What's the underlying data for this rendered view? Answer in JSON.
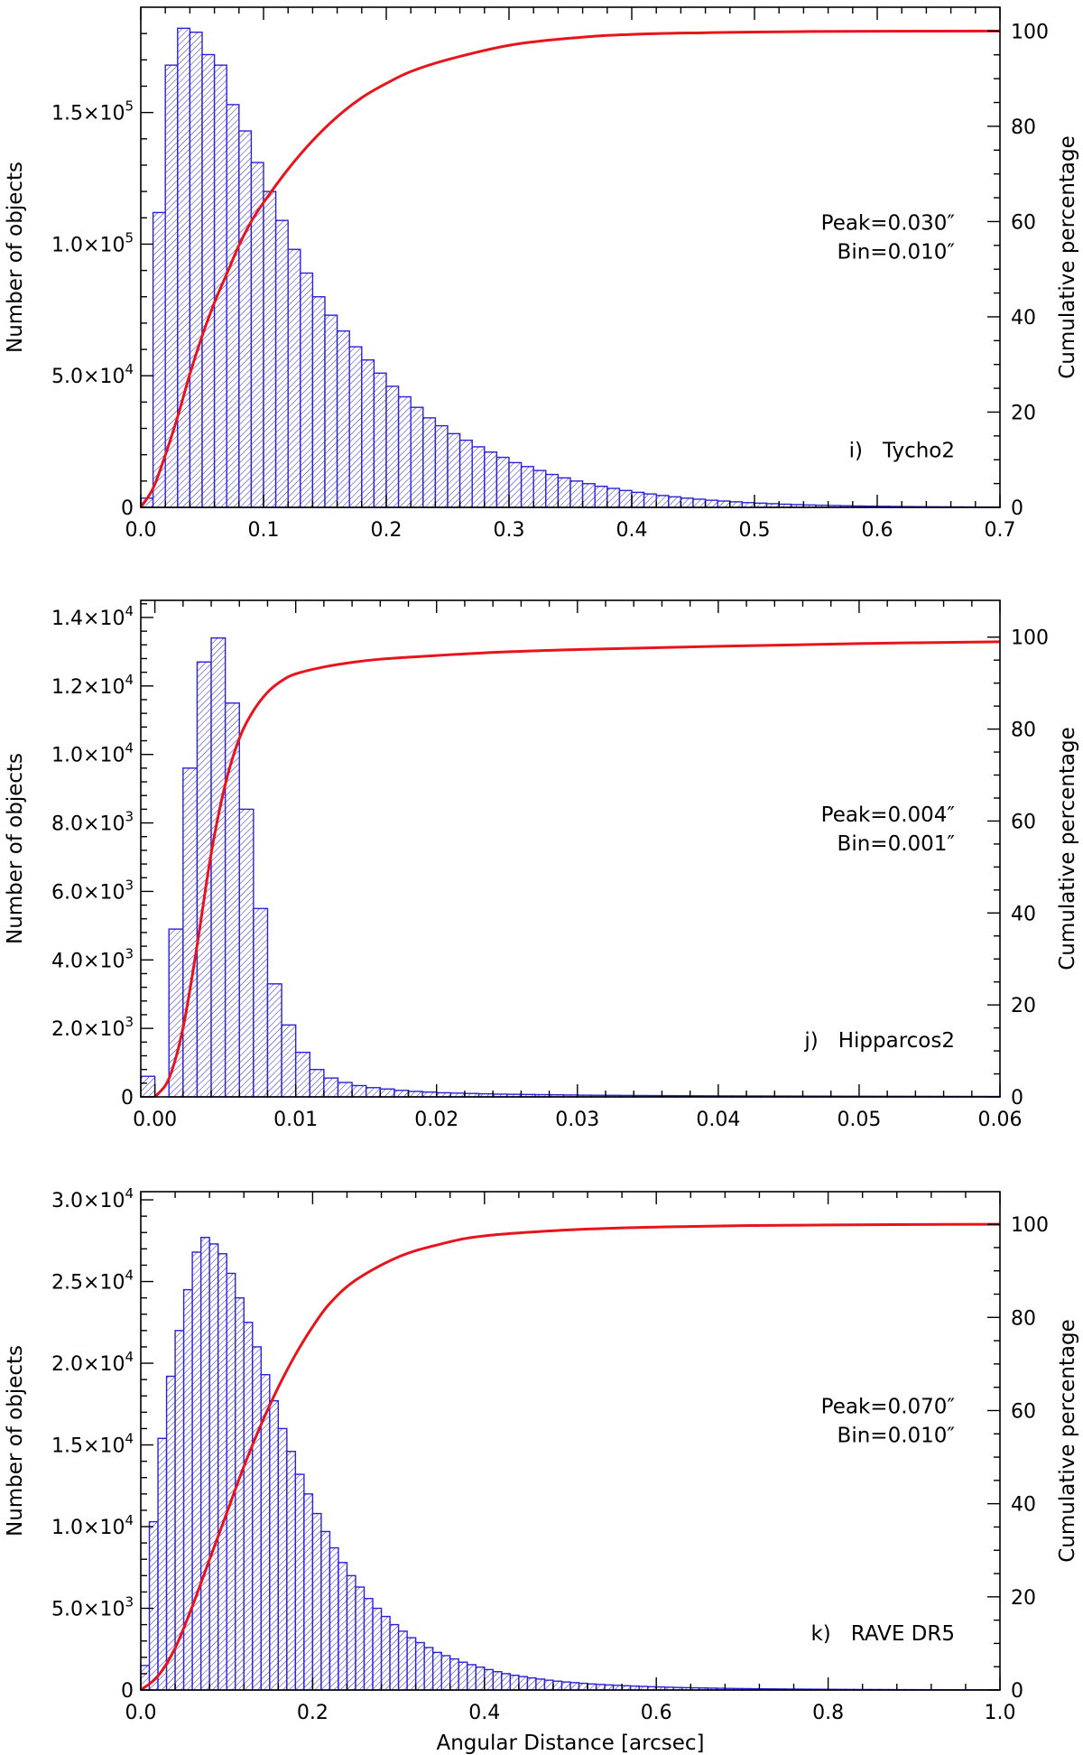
{
  "chart_data": [
    {
      "type": "bar",
      "panel_label": "i)",
      "catalog": "Tycho2",
      "peak_text": "Peak=0.030″",
      "bin_text": "Bin=0.010″",
      "ylabel": "Number of objects",
      "y2label": "Cumulative percentage",
      "xlabel": "",
      "xlim": [
        0,
        0.7
      ],
      "ylim": [
        0,
        190000
      ],
      "y2lim": [
        0,
        105
      ],
      "bin_width": 0.01,
      "x_ticks": [
        "0.0",
        "0.1",
        "0.2",
        "0.3",
        "0.4",
        "0.5",
        "0.6",
        "0.7"
      ],
      "x_tick_values": [
        0,
        0.1,
        0.2,
        0.3,
        0.4,
        0.5,
        0.6,
        0.7
      ],
      "y_ticks": [
        {
          "value": 0,
          "mant": "0",
          "exp": ""
        },
        {
          "value": 50000,
          "mant": "5.0×10",
          "exp": "4"
        },
        {
          "value": 100000,
          "mant": "1.0×10",
          "exp": "5"
        },
        {
          "value": 150000,
          "mant": "1.5×10",
          "exp": "5"
        }
      ],
      "y2_ticks": [
        0,
        20,
        40,
        60,
        80,
        100
      ],
      "counts": [
        3500,
        112000,
        168000,
        182000,
        180500,
        172000,
        168000,
        153000,
        143000,
        131000,
        120000,
        109000,
        98000,
        89000,
        80000,
        73000,
        67000,
        61000,
        56000,
        51000,
        46000,
        42000,
        38000,
        34000,
        31000,
        28000,
        25500,
        23000,
        21000,
        19000,
        17000,
        15500,
        14000,
        12500,
        11200,
        10000,
        9000,
        8000,
        7200,
        6400,
        5700,
        5100,
        4500,
        4000,
        3500,
        3100,
        2700,
        2400,
        2100,
        1800,
        1600,
        1400,
        1200,
        1050,
        900,
        800,
        700,
        600,
        520,
        450,
        400,
        350,
        300,
        260,
        230,
        200,
        170,
        150,
        130,
        110
      ],
      "cumulative": {
        "x": [
          0,
          0.01,
          0.02,
          0.03,
          0.04,
          0.05,
          0.06,
          0.07,
          0.08,
          0.09,
          0.1,
          0.12,
          0.14,
          0.16,
          0.18,
          0.2,
          0.22,
          0.25,
          0.3,
          0.35,
          0.4,
          0.5,
          0.6,
          0.7
        ],
        "y": [
          0,
          4,
          11,
          19,
          28,
          36,
          43,
          49,
          55,
          60,
          64,
          71,
          77,
          82,
          86,
          89,
          91.5,
          94,
          97,
          98.5,
          99.3,
          99.8,
          99.95,
          100
        ]
      }
    },
    {
      "type": "bar",
      "panel_label": "j)",
      "catalog": "Hipparcos2",
      "peak_text": "Peak=0.004″",
      "bin_text": "Bin=0.001″",
      "ylabel": "Number of objects",
      "y2label": "Cumulative percentage",
      "xlabel": "",
      "xlim": [
        -0.001,
        0.06
      ],
      "ylim": [
        0,
        14500
      ],
      "y2lim": [
        0,
        108
      ],
      "bin_width": 0.001,
      "x_ticks": [
        "0.00",
        "0.01",
        "0.02",
        "0.03",
        "0.04",
        "0.05",
        "0.06"
      ],
      "x_tick_values": [
        0,
        0.01,
        0.02,
        0.03,
        0.04,
        0.05,
        0.06
      ],
      "y_ticks": [
        {
          "value": 0,
          "mant": "0",
          "exp": ""
        },
        {
          "value": 2000,
          "mant": "2.0×10",
          "exp": "3"
        },
        {
          "value": 4000,
          "mant": "4.0×10",
          "exp": "3"
        },
        {
          "value": 6000,
          "mant": "6.0×10",
          "exp": "3"
        },
        {
          "value": 8000,
          "mant": "8.0×10",
          "exp": "3"
        },
        {
          "value": 10000,
          "mant": "1.0×10",
          "exp": "4"
        },
        {
          "value": 12000,
          "mant": "1.2×10",
          "exp": "4"
        },
        {
          "value": 14000,
          "mant": "1.4×10",
          "exp": "4"
        }
      ],
      "y2_ticks": [
        0,
        20,
        40,
        60,
        80,
        100
      ],
      "bars_start": -0.001,
      "counts": [
        600,
        0,
        4900,
        9600,
        12700,
        13400,
        11500,
        8400,
        5500,
        3300,
        2100,
        1300,
        800,
        550,
        420,
        330,
        270,
        230,
        190,
        160,
        140,
        120,
        110,
        100,
        90,
        80,
        75,
        70,
        65,
        60,
        55,
        50,
        47,
        45,
        42,
        40,
        38,
        36,
        34,
        32,
        30,
        29,
        28,
        27,
        26,
        25,
        24,
        23,
        22,
        21,
        20,
        19,
        18,
        18,
        17,
        16,
        15,
        15,
        14,
        14,
        13
      ],
      "cumulative": {
        "x": [
          0,
          0.001,
          0.002,
          0.003,
          0.004,
          0.005,
          0.006,
          0.007,
          0.008,
          0.009,
          0.01,
          0.012,
          0.014,
          0.016,
          0.02,
          0.025,
          0.03,
          0.04,
          0.05,
          0.06
        ],
        "y": [
          0,
          4,
          15,
          33,
          53,
          68,
          78,
          84,
          88,
          90.5,
          92,
          93.5,
          94.5,
          95.2,
          96,
          96.8,
          97.3,
          98,
          98.6,
          99
        ]
      }
    },
    {
      "type": "bar",
      "panel_label": "k)",
      "catalog": "RAVE DR5",
      "peak_text": "Peak=0.070″",
      "bin_text": "Bin=0.010″",
      "ylabel": "Number of objects",
      "y2label": "Cumulative percentage",
      "xlabel": "Angular Distance [arcsec]",
      "xlim": [
        0,
        1.0
      ],
      "ylim": [
        0,
        30500
      ],
      "y2lim": [
        0,
        107
      ],
      "bin_width": 0.01,
      "x_ticks": [
        "0.0",
        "0.2",
        "0.4",
        "0.6",
        "0.8",
        "1.0"
      ],
      "x_tick_values": [
        0,
        0.2,
        0.4,
        0.6,
        0.8,
        1.0
      ],
      "y_ticks": [
        {
          "value": 0,
          "mant": "0",
          "exp": ""
        },
        {
          "value": 5000,
          "mant": "5.0×10",
          "exp": "3"
        },
        {
          "value": 10000,
          "mant": "1.0×10",
          "exp": "4"
        },
        {
          "value": 15000,
          "mant": "1.5×10",
          "exp": "4"
        },
        {
          "value": 20000,
          "mant": "2.0×10",
          "exp": "4"
        },
        {
          "value": 25000,
          "mant": "2.5×10",
          "exp": "4"
        },
        {
          "value": 30000,
          "mant": "3.0×10",
          "exp": "4"
        }
      ],
      "y2_ticks": [
        0,
        20,
        40,
        60,
        80,
        100
      ],
      "counts": [
        1500,
        10300,
        15400,
        19200,
        22000,
        24500,
        26800,
        27700,
        27300,
        26700,
        25500,
        24000,
        22500,
        21000,
        19300,
        17700,
        16000,
        14600,
        13200,
        12000,
        10800,
        9700,
        8700,
        7800,
        7000,
        6300,
        5600,
        5000,
        4500,
        4000,
        3600,
        3200,
        2900,
        2600,
        2300,
        2100,
        1900,
        1700,
        1550,
        1400,
        1250,
        1120,
        1000,
        900,
        820,
        740,
        670,
        600,
        540,
        490,
        450,
        410,
        370,
        340,
        310,
        285,
        260,
        240,
        220,
        200,
        185,
        170,
        155,
        145,
        135,
        125,
        115,
        105,
        98,
        90,
        84,
        78,
        72,
        67,
        62,
        58,
        54,
        50,
        47,
        44,
        41,
        38,
        35,
        33,
        31,
        29,
        27,
        25,
        23,
        22,
        20,
        19,
        18,
        17,
        16,
        15,
        14,
        13,
        12,
        11
      ],
      "cumulative": {
        "x": [
          0,
          0.02,
          0.04,
          0.06,
          0.08,
          0.1,
          0.12,
          0.14,
          0.16,
          0.18,
          0.2,
          0.22,
          0.25,
          0.3,
          0.35,
          0.4,
          0.5,
          0.6,
          0.7,
          0.8,
          0.9,
          1.0
        ],
        "y": [
          0,
          3,
          9,
          18,
          28,
          38,
          48,
          57,
          65,
          72,
          78,
          83,
          88,
          93,
          95.8,
          97.5,
          98.8,
          99.4,
          99.7,
          99.85,
          99.95,
          100
        ]
      }
    }
  ]
}
